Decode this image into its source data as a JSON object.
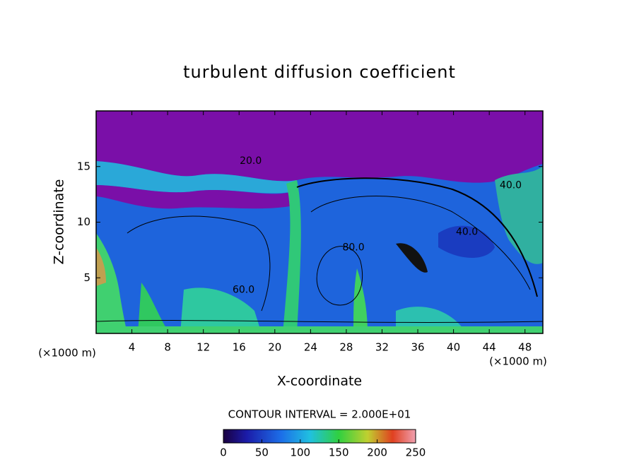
{
  "chart_data": {
    "type": "contour",
    "title": "turbulent diffusion coefficient",
    "xlabel": "X-coordinate",
    "ylabel": "Z-coordinate",
    "x_unit": "(×1000 m)",
    "xlim": [
      0,
      50
    ],
    "xticks": [
      4,
      8,
      12,
      16,
      20,
      24,
      28,
      32,
      36,
      40,
      44,
      48
    ],
    "ylim": [
      0,
      20
    ],
    "yticks": [
      5,
      10,
      15
    ],
    "contour_interval": "CONTOUR INTERVAL = 2.000E+01",
    "colorbar": {
      "lim": [
        0,
        250
      ],
      "ticks": [
        0,
        50,
        100,
        150,
        200,
        250
      ]
    },
    "contour_labels": [
      {
        "label": "80.0",
        "x": 28.8,
        "z": 7.7
      },
      {
        "label": "60.0",
        "x": 16.5,
        "z": 3.9
      },
      {
        "label": "40.0",
        "x": 41.5,
        "z": 9.1
      },
      {
        "label": "40.0",
        "x": 46.4,
        "z": 13.3
      },
      {
        "label": "20.0",
        "x": 17.3,
        "z": 15.5
      }
    ]
  }
}
